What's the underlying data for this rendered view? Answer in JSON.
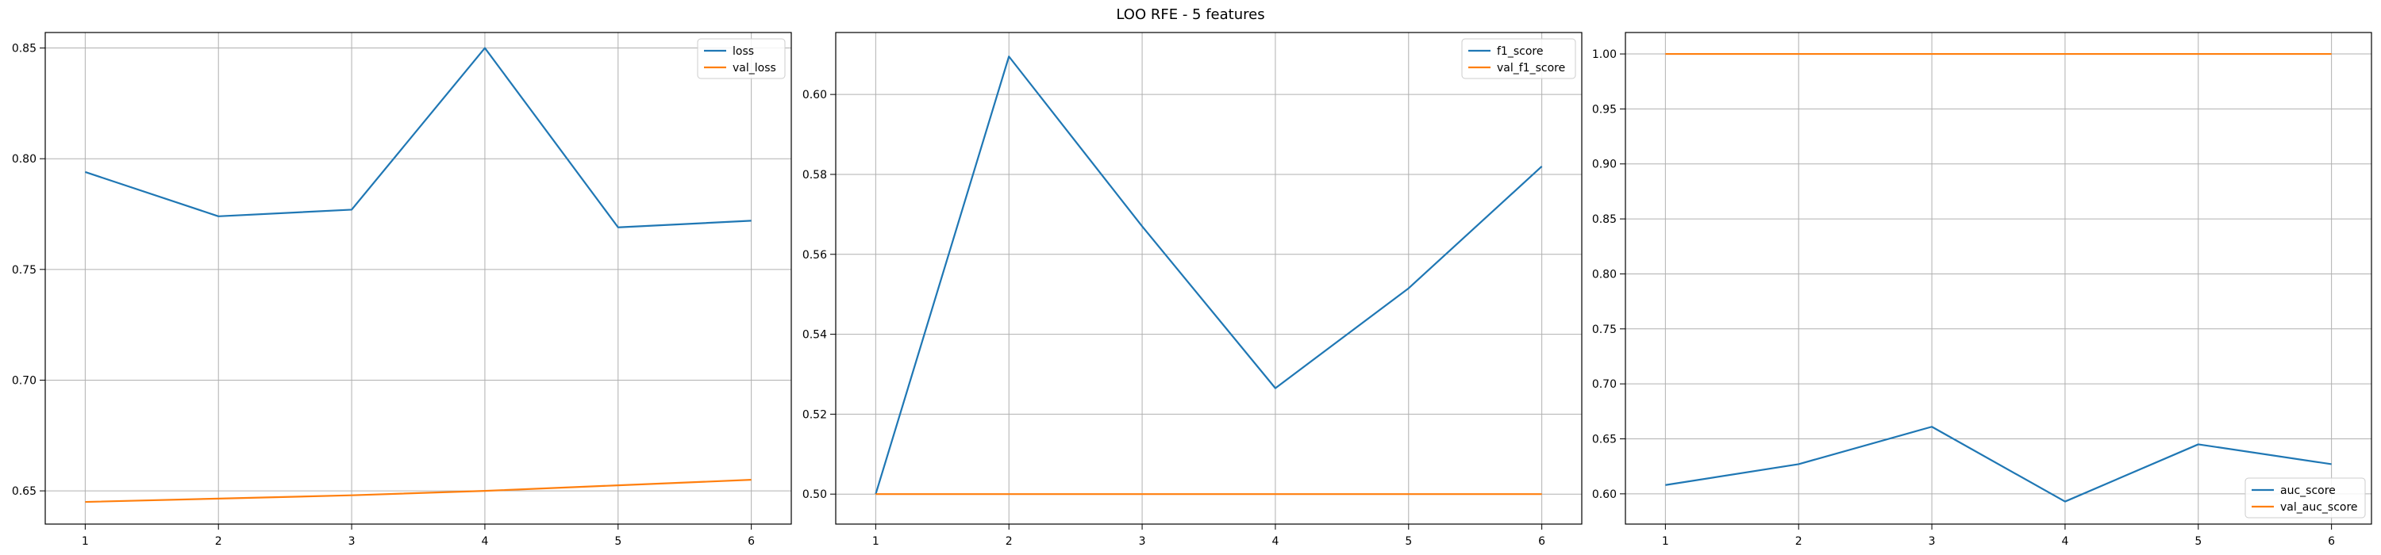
{
  "figure": {
    "title": "LOO RFE - 5 features"
  },
  "colors": {
    "train": "#1f77b4",
    "val": "#ff7f0e",
    "grid": "#b0b0b0",
    "axis": "#000000"
  },
  "chart_data": [
    {
      "type": "line",
      "title": "",
      "xlabel": "",
      "ylabel": "",
      "x": [
        1,
        2,
        3,
        4,
        5,
        6
      ],
      "xlim": [
        0.7,
        6.3
      ],
      "ylim": [
        0.635,
        0.857
      ],
      "xticks": [
        1,
        2,
        3,
        4,
        5,
        6
      ],
      "yticks": [
        0.65,
        0.7,
        0.75,
        0.8,
        0.85
      ],
      "grid": true,
      "legend": "top-right",
      "series": [
        {
          "name": "loss",
          "values": [
            0.794,
            0.774,
            0.777,
            0.85,
            0.769,
            0.772
          ]
        },
        {
          "name": "val_loss",
          "values": [
            0.645,
            0.6465,
            0.648,
            0.65,
            0.6525,
            0.655
          ]
        }
      ]
    },
    {
      "type": "line",
      "title": "",
      "xlabel": "",
      "ylabel": "",
      "x": [
        1,
        2,
        3,
        4,
        5,
        6
      ],
      "xlim": [
        0.7,
        6.3
      ],
      "ylim": [
        0.4925,
        0.6155
      ],
      "xticks": [
        1,
        2,
        3,
        4,
        5,
        6
      ],
      "yticks": [
        0.5,
        0.52,
        0.54,
        0.56,
        0.58,
        0.6
      ],
      "grid": true,
      "legend": "top-right",
      "series": [
        {
          "name": "f1_score",
          "values": [
            0.5,
            0.6095,
            0.567,
            0.5265,
            0.5515,
            0.582
          ]
        },
        {
          "name": "val_f1_score",
          "values": [
            0.5,
            0.5,
            0.5,
            0.5,
            0.5,
            0.5
          ]
        }
      ]
    },
    {
      "type": "line",
      "title": "",
      "xlabel": "",
      "ylabel": "",
      "x": [
        1,
        2,
        3,
        4,
        5,
        6
      ],
      "xlim": [
        0.7,
        6.3
      ],
      "ylim": [
        0.5725,
        1.0195
      ],
      "xticks": [
        1,
        2,
        3,
        4,
        5,
        6
      ],
      "yticks": [
        0.6,
        0.65,
        0.7,
        0.75,
        0.8,
        0.85,
        0.9,
        0.95,
        1.0
      ],
      "grid": true,
      "legend": "bottom-right",
      "series": [
        {
          "name": "auc_score",
          "values": [
            0.608,
            0.627,
            0.661,
            0.593,
            0.645,
            0.627
          ]
        },
        {
          "name": "val_auc_score",
          "values": [
            1.0,
            1.0,
            1.0,
            1.0,
            1.0,
            1.0
          ]
        }
      ]
    }
  ]
}
